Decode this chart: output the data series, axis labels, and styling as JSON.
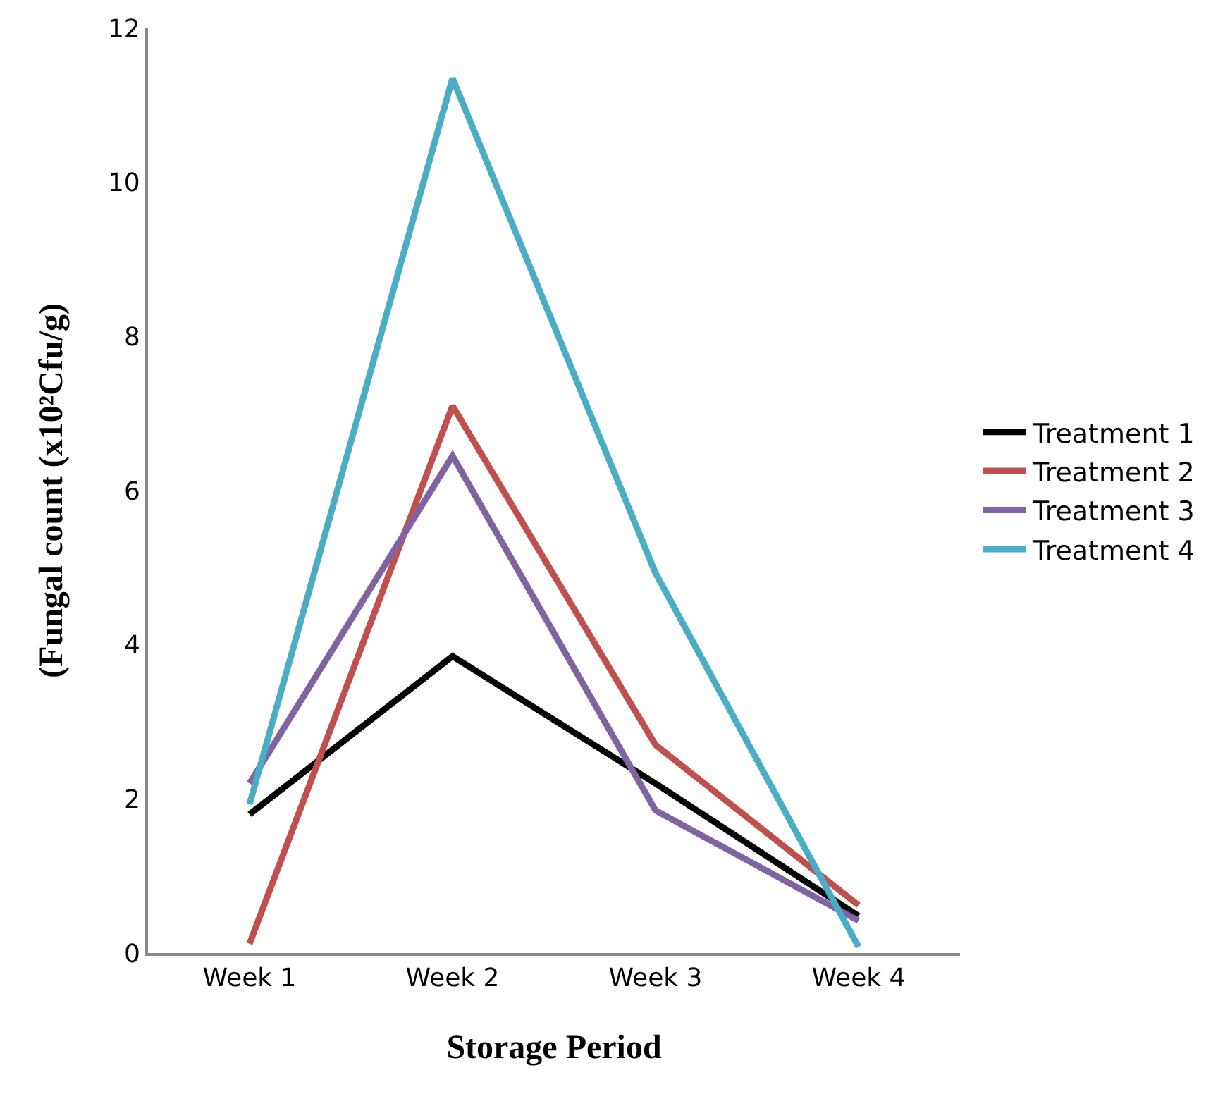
{
  "chart_data": {
    "type": "line",
    "xlabel": "Storage Period",
    "ylabel": "(Fungal count (x10²Cfu/g)",
    "categories": [
      "Week 1",
      "Week 2",
      "Week 3",
      "Week 4"
    ],
    "series": [
      {
        "name": "Treatment 1",
        "color": "#000000",
        "values": [
          1.8,
          3.85,
          2.2,
          0.48
        ]
      },
      {
        "name": "Treatment 2",
        "color": "#c0504d",
        "values": [
          0.12,
          7.1,
          2.7,
          0.62
        ]
      },
      {
        "name": "Treatment 3",
        "color": "#8064a2",
        "values": [
          2.2,
          6.45,
          1.85,
          0.42
        ]
      },
      {
        "name": "Treatment 4",
        "color": "#4bacc6",
        "values": [
          1.93,
          11.35,
          4.93,
          0.08
        ]
      }
    ],
    "ylim": [
      0,
      12
    ],
    "yticks": [
      0,
      2,
      4,
      6,
      8,
      10,
      12
    ],
    "legend": "right",
    "marker": "none",
    "line_style": "solid"
  }
}
